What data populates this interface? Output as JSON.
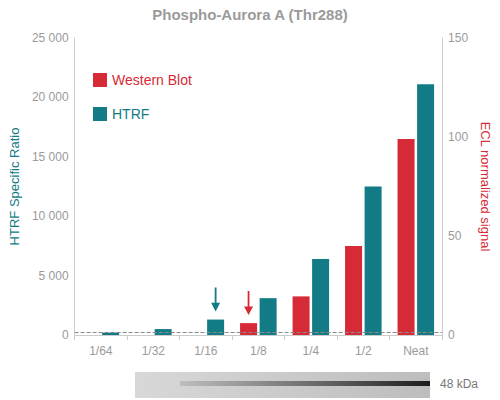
{
  "chart_data": {
    "type": "bar",
    "title": "Phospho-Aurora A (Thr288)",
    "categories": [
      "1/64",
      "1/32",
      "1/16",
      "1/8",
      "1/4",
      "1/2",
      "Neat"
    ],
    "series": [
      {
        "name": "Western Blot",
        "color": "#d62a36",
        "axis": "y2",
        "values": [
          null,
          null,
          null,
          6,
          19.5,
          45,
          99
        ],
        "arrow": "1/8"
      },
      {
        "name": "HTRF",
        "color": "#137b85",
        "values": [
          200,
          500,
          1300,
          3100,
          6400,
          12500,
          21100
        ],
        "arrow": "1/16"
      }
    ],
    "ylabel": "HTRF Specific Ratio",
    "y2label": "ECL normalized signal",
    "ylim": [
      0,
      25000
    ],
    "yticks": [
      0,
      {
        "value": 5000,
        "label": "5 000"
      },
      {
        "value": 10000,
        "label": "10 000"
      },
      {
        "value": 15000,
        "label": "15 000"
      },
      {
        "value": 20000,
        "label": "20 000"
      },
      {
        "value": 25000,
        "label": "25 000"
      }
    ],
    "y2lim": [
      0,
      150
    ],
    "y2ticks": [
      0,
      50,
      100,
      150
    ],
    "baseline": 250,
    "blot_label": "48 kDa",
    "legend": "upper left",
    "grid": false
  }
}
